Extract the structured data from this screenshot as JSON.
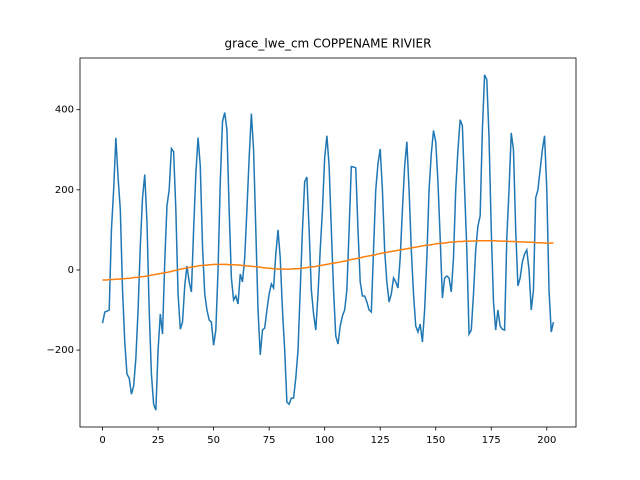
{
  "chart_data": {
    "type": "line",
    "title": "grace_lwe_cm COPPENAME RIVIER",
    "x": [
      0,
      1,
      2,
      3,
      4,
      5,
      6,
      7,
      8,
      9,
      10,
      11,
      12,
      13,
      14,
      15,
      16,
      17,
      18,
      19,
      20,
      21,
      22,
      23,
      24,
      25,
      26,
      27,
      28,
      29,
      30,
      31,
      32,
      33,
      34,
      35,
      36,
      37,
      38,
      39,
      40,
      41,
      42,
      43,
      44,
      45,
      46,
      47,
      48,
      49,
      50,
      51,
      52,
      53,
      54,
      55,
      56,
      57,
      58,
      59,
      60,
      61,
      62,
      63,
      64,
      65,
      66,
      67,
      68,
      69,
      70,
      71,
      72,
      73,
      74,
      75,
      76,
      77,
      78,
      79,
      80,
      81,
      82,
      83,
      84,
      85,
      86,
      87,
      88,
      89,
      90,
      91,
      92,
      93,
      94,
      95,
      96,
      97,
      98,
      99,
      100,
      101,
      102,
      103,
      104,
      105,
      106,
      107,
      108,
      109,
      110,
      111,
      112,
      113,
      114,
      115,
      116,
      117,
      118,
      119,
      120,
      121,
      122,
      123,
      124,
      125,
      126,
      127,
      128,
      129,
      130,
      131,
      132,
      133,
      134,
      135,
      136,
      137,
      138,
      139,
      140,
      141,
      142,
      143,
      144,
      145,
      146,
      147,
      148,
      149,
      150,
      151,
      152,
      153,
      154,
      155,
      156,
      157,
      158,
      159,
      160,
      161,
      162,
      163,
      164,
      165,
      166,
      167,
      168,
      169,
      170,
      171,
      172,
      173,
      174,
      175,
      176,
      177,
      178,
      179,
      180,
      181,
      182,
      183,
      184,
      185,
      186,
      187,
      188,
      189,
      190,
      191,
      192,
      193,
      194,
      195,
      196,
      197,
      198,
      199,
      200,
      201,
      202,
      203
    ],
    "series": [
      {
        "color": "#1f77b4",
        "values": [
          -133,
          -105,
          -103,
          -100,
          100,
          200,
          330,
          230,
          150,
          -50,
          -180,
          -260,
          -270,
          -310,
          -290,
          -220,
          -100,
          60,
          180,
          238,
          120,
          -100,
          -260,
          -335,
          -350,
          -200,
          -110,
          -160,
          20,
          160,
          200,
          303,
          295,
          150,
          -60,
          -148,
          -130,
          -40,
          10,
          -30,
          -55,
          100,
          240,
          330,
          260,
          60,
          -60,
          -100,
          -125,
          -130,
          -188,
          -150,
          0,
          220,
          370,
          393,
          350,
          150,
          -20,
          -75,
          -65,
          -85,
          -10,
          -30,
          30,
          150,
          280,
          390,
          300,
          100,
          -100,
          -212,
          -150,
          -145,
          -100,
          -60,
          -35,
          -45,
          40,
          100,
          30,
          -100,
          -200,
          -330,
          -335,
          -320,
          -320,
          -270,
          -200,
          -50,
          100,
          220,
          232,
          100,
          -50,
          -110,
          -150,
          -60,
          50,
          150,
          280,
          335,
          260,
          100,
          -50,
          -165,
          -185,
          -140,
          -115,
          -100,
          -50,
          100,
          258,
          257,
          255,
          100,
          -30,
          -65,
          -65,
          -80,
          -100,
          -105,
          50,
          200,
          265,
          302,
          200,
          50,
          -30,
          -80,
          -60,
          -20,
          -30,
          -45,
          30,
          150,
          258,
          320,
          200,
          50,
          -60,
          -140,
          -155,
          -135,
          -180,
          -100,
          30,
          200,
          290,
          348,
          320,
          220,
          80,
          -70,
          -20,
          -15,
          -20,
          -55,
          30,
          200,
          300,
          375,
          360,
          200,
          50,
          -160,
          -150,
          -60,
          50,
          110,
          135,
          350,
          487,
          475,
          330,
          100,
          -80,
          -150,
          -100,
          -140,
          -148,
          -150,
          80,
          200,
          342,
          300,
          100,
          -40,
          -20,
          20,
          40,
          50,
          0,
          -100,
          -50,
          180,
          200,
          250,
          300,
          335,
          200,
          -50,
          -155,
          -130
        ]
      },
      {
        "color": "#ff7f0e",
        "values": [
          -25,
          -25,
          -25,
          -24,
          -24,
          -24,
          -23,
          -23,
          -23,
          -22,
          -22,
          -21,
          -21,
          -20,
          -19,
          -19,
          -18,
          -17,
          -17,
          -16,
          -15,
          -14,
          -13,
          -12,
          -11,
          -10,
          -9,
          -8,
          -7,
          -6,
          -5,
          -4,
          -2,
          -1,
          0,
          2,
          3,
          4,
          5,
          6,
          7,
          8,
          9,
          10,
          11,
          11,
          12,
          12,
          13,
          13,
          14,
          14,
          14,
          14,
          14,
          14,
          14,
          13,
          13,
          13,
          13,
          12,
          12,
          11,
          11,
          10,
          10,
          9,
          9,
          8,
          7,
          7,
          6,
          5,
          5,
          4,
          4,
          3,
          3,
          2,
          2,
          2,
          2,
          2,
          2,
          2,
          3,
          3,
          3,
          4,
          5,
          5,
          6,
          7,
          8,
          8,
          9,
          10,
          11,
          12,
          13,
          14,
          15,
          16,
          17,
          18,
          19,
          20,
          21,
          22,
          23,
          25,
          26,
          27,
          28,
          29,
          30,
          32,
          33,
          34,
          35,
          36,
          37,
          38,
          40,
          41,
          42,
          43,
          44,
          45,
          46,
          47,
          48,
          49,
          50,
          51,
          52,
          53,
          54,
          55,
          56,
          57,
          58,
          59,
          60,
          61,
          62,
          62,
          63,
          64,
          65,
          66,
          66,
          67,
          67,
          68,
          69,
          69,
          70,
          70,
          71,
          71,
          71,
          72,
          72,
          72,
          72,
          72,
          73,
          73,
          73,
          73,
          73,
          73,
          73,
          73,
          73,
          73,
          72,
          72,
          72,
          72,
          72,
          71,
          71,
          71,
          71,
          70,
          70,
          70,
          70,
          69,
          69,
          69,
          69,
          68,
          68,
          68,
          68,
          67,
          67,
          67,
          67,
          67
        ]
      }
    ],
    "xlim": [
      -10.15,
      213.15
    ],
    "ylim": [
      -392,
      529
    ],
    "xticks": [
      0,
      25,
      50,
      75,
      100,
      125,
      150,
      175,
      200
    ],
    "yticks": [
      {
        "value": -200,
        "label": "−200"
      },
      0,
      200,
      400
    ]
  }
}
